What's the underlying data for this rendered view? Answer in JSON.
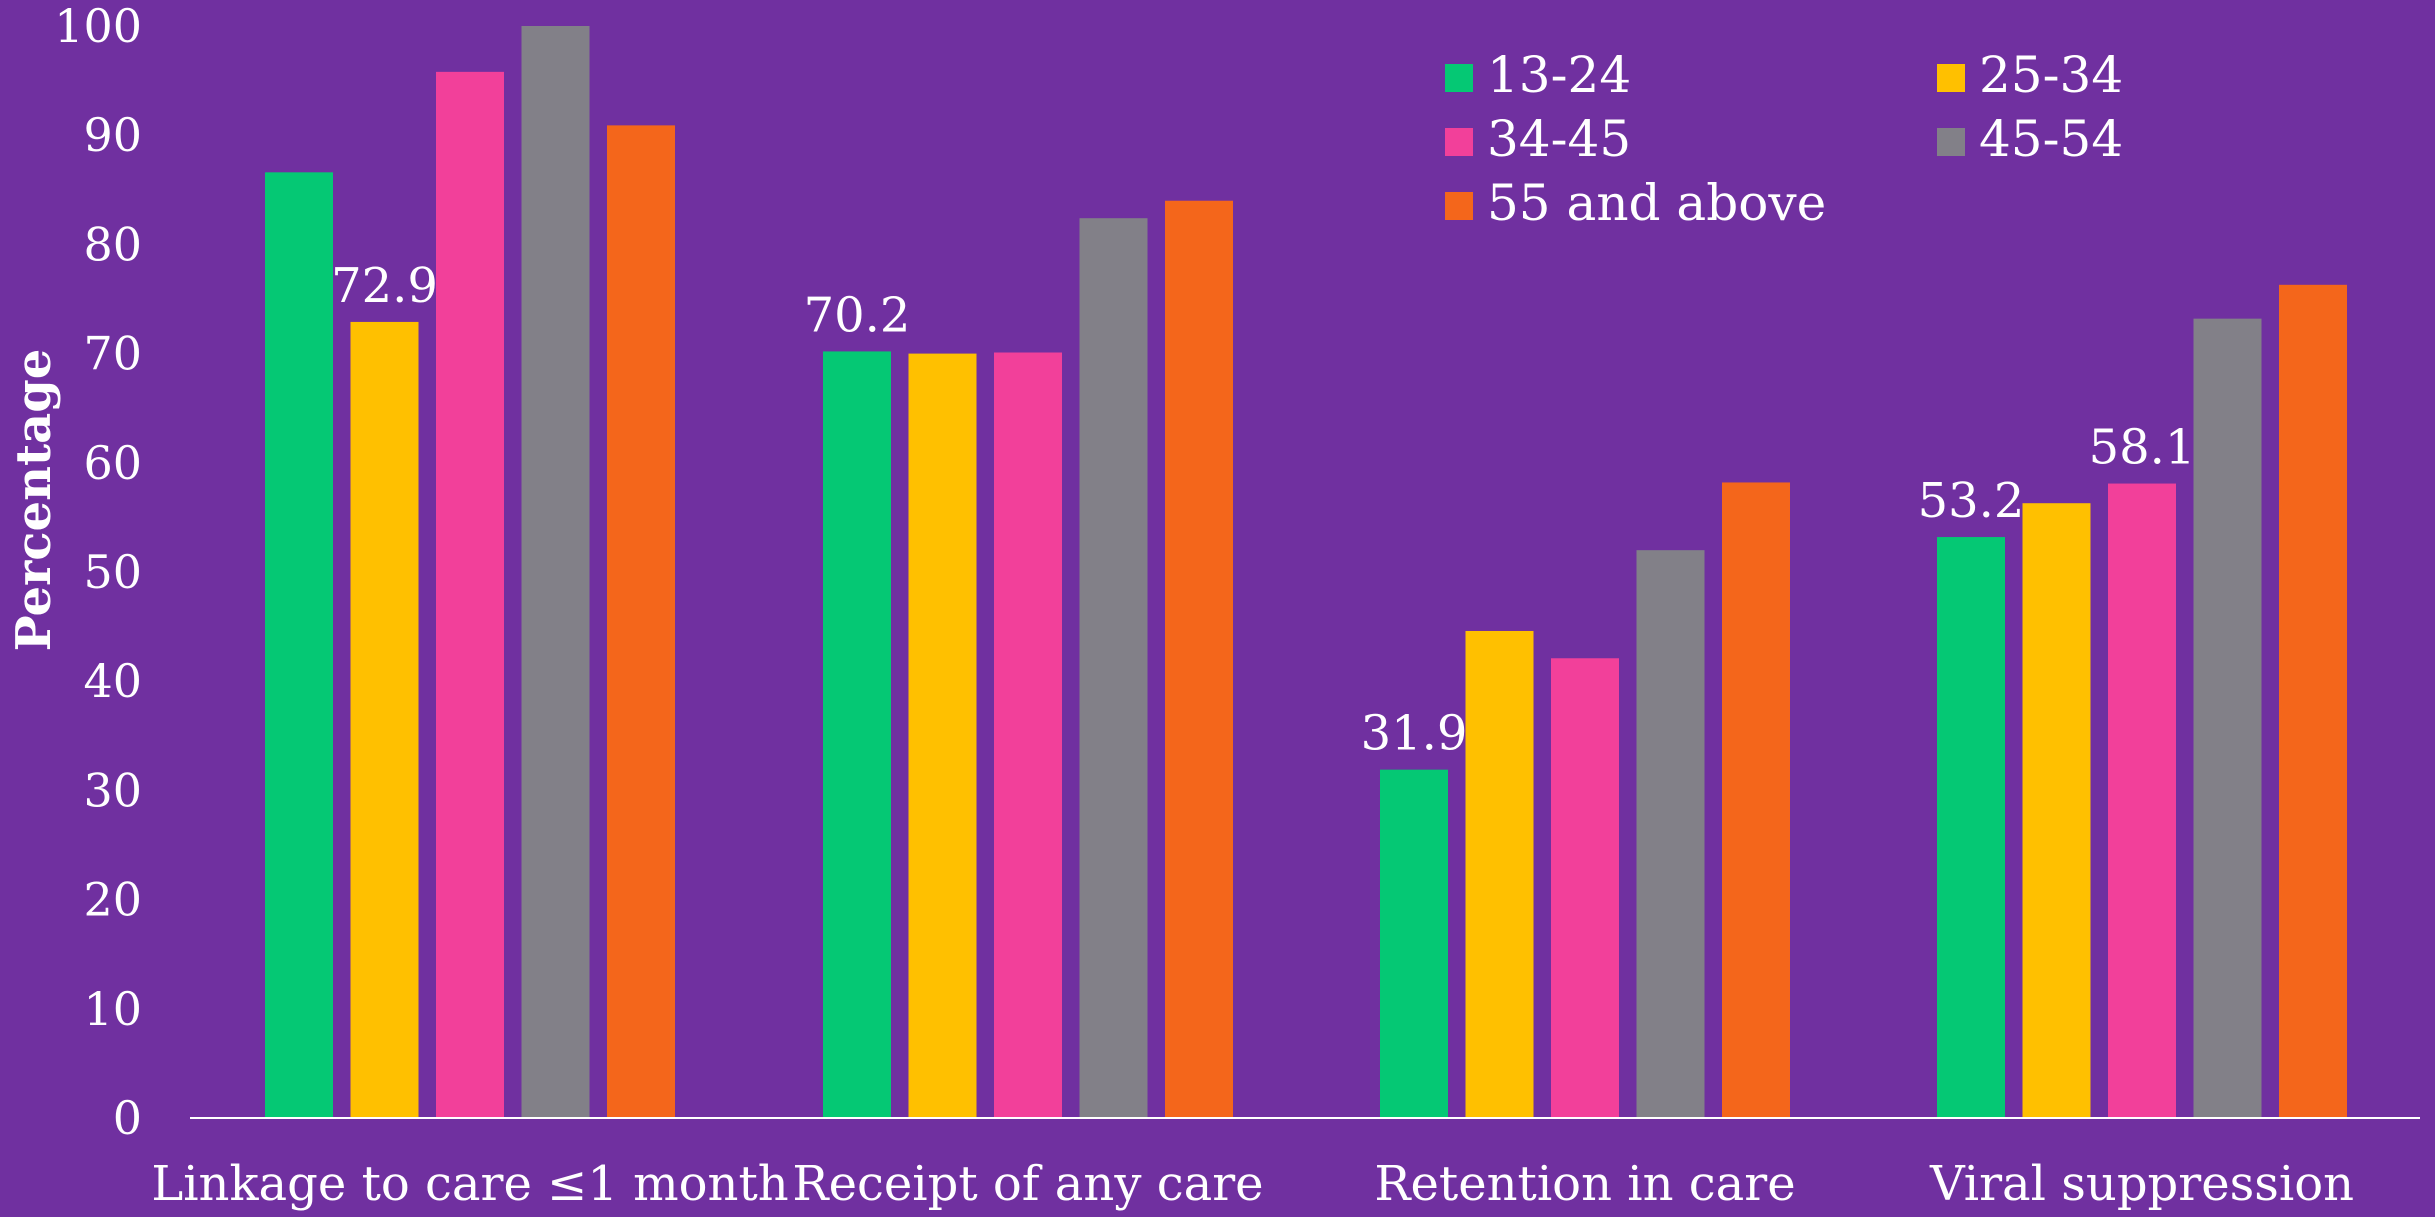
{
  "chart_data": {
    "type": "bar",
    "title": "",
    "xlabel": "",
    "ylabel": "Percentage",
    "ylim": [
      0,
      100
    ],
    "yticks": [
      0,
      10,
      20,
      30,
      40,
      50,
      60,
      70,
      80,
      90,
      100
    ],
    "grid": false,
    "legend_position": "top-right",
    "categories": [
      "Linkage to care ≤1 month",
      "Receipt of any care",
      "Retention in care",
      "Viral suppression"
    ],
    "series": [
      {
        "name": "13-24",
        "color": "#05C874",
        "values": [
          86.6,
          70.2,
          31.9,
          53.2
        ]
      },
      {
        "name": "25-34",
        "color": "#FFC000",
        "values": [
          72.9,
          70.0,
          44.6,
          56.3
        ]
      },
      {
        "name": "34-45",
        "color": "#F2409A",
        "values": [
          95.8,
          70.1,
          42.1,
          58.1
        ]
      },
      {
        "name": "45-54",
        "color": "#828088",
        "values": [
          100.0,
          82.4,
          52.0,
          73.2
        ]
      },
      {
        "name": "55 and above",
        "color": "#F4661B",
        "values": [
          90.9,
          84.0,
          58.2,
          76.3
        ]
      }
    ],
    "data_labels": [
      {
        "category": "Linkage to care ≤1 month",
        "series": "25-34",
        "text": "72.9"
      },
      {
        "category": "Receipt of any care",
        "series": "13-24",
        "text": "70.2"
      },
      {
        "category": "Retention in care",
        "series": "13-24",
        "text": "31.9"
      },
      {
        "category": "Viral suppression",
        "series": "13-24",
        "text": "53.2"
      },
      {
        "category": "Viral suppression",
        "series": "34-45",
        "text": "58.1"
      }
    ]
  }
}
